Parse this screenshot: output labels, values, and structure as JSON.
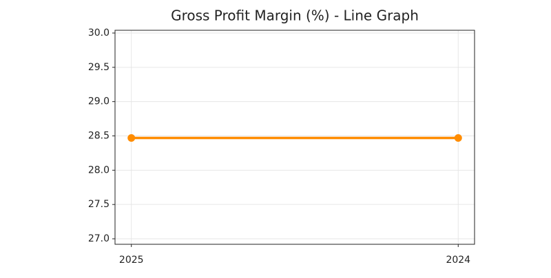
{
  "chart_data": {
    "type": "line",
    "title": "Gross Profit Margin (%) - Line Graph",
    "categories": [
      "2025",
      "2024"
    ],
    "series": [
      {
        "name": "Gross Profit Margin (%)",
        "color": "#ff8c00",
        "values": [
          28.47,
          28.47
        ]
      }
    ],
    "ylim": [
      26.92,
      30.04
    ],
    "yticks": [
      {
        "value": 27,
        "label": "27.0"
      },
      27.5,
      {
        "value": 28,
        "label": "28.0"
      },
      28.5,
      {
        "value": 29,
        "label": "29.0"
      },
      29.5,
      {
        "value": 30,
        "label": "30.0"
      }
    ],
    "grid": true
  }
}
